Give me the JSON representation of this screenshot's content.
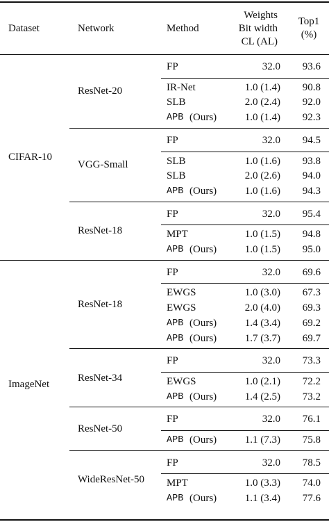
{
  "headers": {
    "dataset": "Dataset",
    "network": "Network",
    "method": "Method",
    "weights_line1": "Weights",
    "weights_line2": "Bit width",
    "weights_line3": "CL (AL)",
    "top1_line1": "Top1",
    "top1_line2": "(%)"
  },
  "datasets": [
    {
      "name": "CIFAR-10",
      "groups": [
        {
          "network": "ResNet-20",
          "rows": [
            {
              "method": "FP",
              "ours": false,
              "bits": "32.0",
              "top1": "93.6"
            },
            {
              "method": "IR-Net",
              "ours": false,
              "bits": "1.0 (1.4)",
              "top1": "90.8"
            },
            {
              "method": "SLB",
              "ours": false,
              "bits": "2.0 (2.4)",
              "top1": "92.0"
            },
            {
              "method": "APB",
              "ours": true,
              "ours_label": "(Ours)",
              "bits": "1.0 (1.4)",
              "top1": "92.3"
            }
          ]
        },
        {
          "network": "VGG-Small",
          "rows": [
            {
              "method": "FP",
              "ours": false,
              "bits": "32.0",
              "top1": "94.5"
            },
            {
              "method": "SLB",
              "ours": false,
              "bits": "1.0 (1.6)",
              "top1": "93.8"
            },
            {
              "method": "SLB",
              "ours": false,
              "bits": "2.0 (2.6)",
              "top1": "94.0"
            },
            {
              "method": "APB",
              "ours": true,
              "ours_label": "(Ours)",
              "bits": "1.0 (1.6)",
              "top1": "94.3"
            }
          ]
        },
        {
          "network": "ResNet-18",
          "rows": [
            {
              "method": "FP",
              "ours": false,
              "bits": "32.0",
              "top1": "95.4"
            },
            {
              "method": "MPT",
              "ours": false,
              "bits": "1.0 (1.5)",
              "top1": "94.8"
            },
            {
              "method": "APB",
              "ours": true,
              "ours_label": "(Ours)",
              "bits": "1.0 (1.5)",
              "top1": "95.0"
            }
          ]
        }
      ]
    },
    {
      "name": "ImageNet",
      "groups": [
        {
          "network": "ResNet-18",
          "rows": [
            {
              "method": "FP",
              "ours": false,
              "bits": "32.0",
              "top1": "69.6"
            },
            {
              "method": "EWGS",
              "ours": false,
              "bits": "1.0 (3.0)",
              "top1": "67.3"
            },
            {
              "method": "EWGS",
              "ours": false,
              "bits": "2.0 (4.0)",
              "top1": "69.3"
            },
            {
              "method": "APB",
              "ours": true,
              "ours_label": "(Ours)",
              "bits": "1.4 (3.4)",
              "top1": "69.2"
            },
            {
              "method": "APB",
              "ours": true,
              "ours_label": "(Ours)",
              "bits": "1.7 (3.7)",
              "top1": "69.7"
            }
          ]
        },
        {
          "network": "ResNet-34",
          "rows": [
            {
              "method": "FP",
              "ours": false,
              "bits": "32.0",
              "top1": "73.3"
            },
            {
              "method": "EWGS",
              "ours": false,
              "bits": "1.0 (2.1)",
              "top1": "72.2"
            },
            {
              "method": "APB",
              "ours": true,
              "ours_label": "(Ours)",
              "bits": "1.4 (2.5)",
              "top1": "73.2"
            }
          ]
        },
        {
          "network": "ResNet-50",
          "rows": [
            {
              "method": "FP",
              "ours": false,
              "bits": "32.0",
              "top1": "76.1"
            },
            {
              "method": "APB",
              "ours": true,
              "ours_label": "(Ours)",
              "bits": "1.1 (7.3)",
              "top1": "75.8"
            }
          ]
        },
        {
          "network": "WideResNet-50",
          "rows": [
            {
              "method": "FP",
              "ours": false,
              "bits": "32.0",
              "top1": "78.5"
            },
            {
              "method": "MPT",
              "ours": false,
              "bits": "1.0 (3.3)",
              "top1": "74.0"
            },
            {
              "method": "APB",
              "ours": true,
              "ours_label": "(Ours)",
              "bits": "1.1 (3.4)",
              "top1": "77.6"
            }
          ]
        }
      ]
    }
  ]
}
